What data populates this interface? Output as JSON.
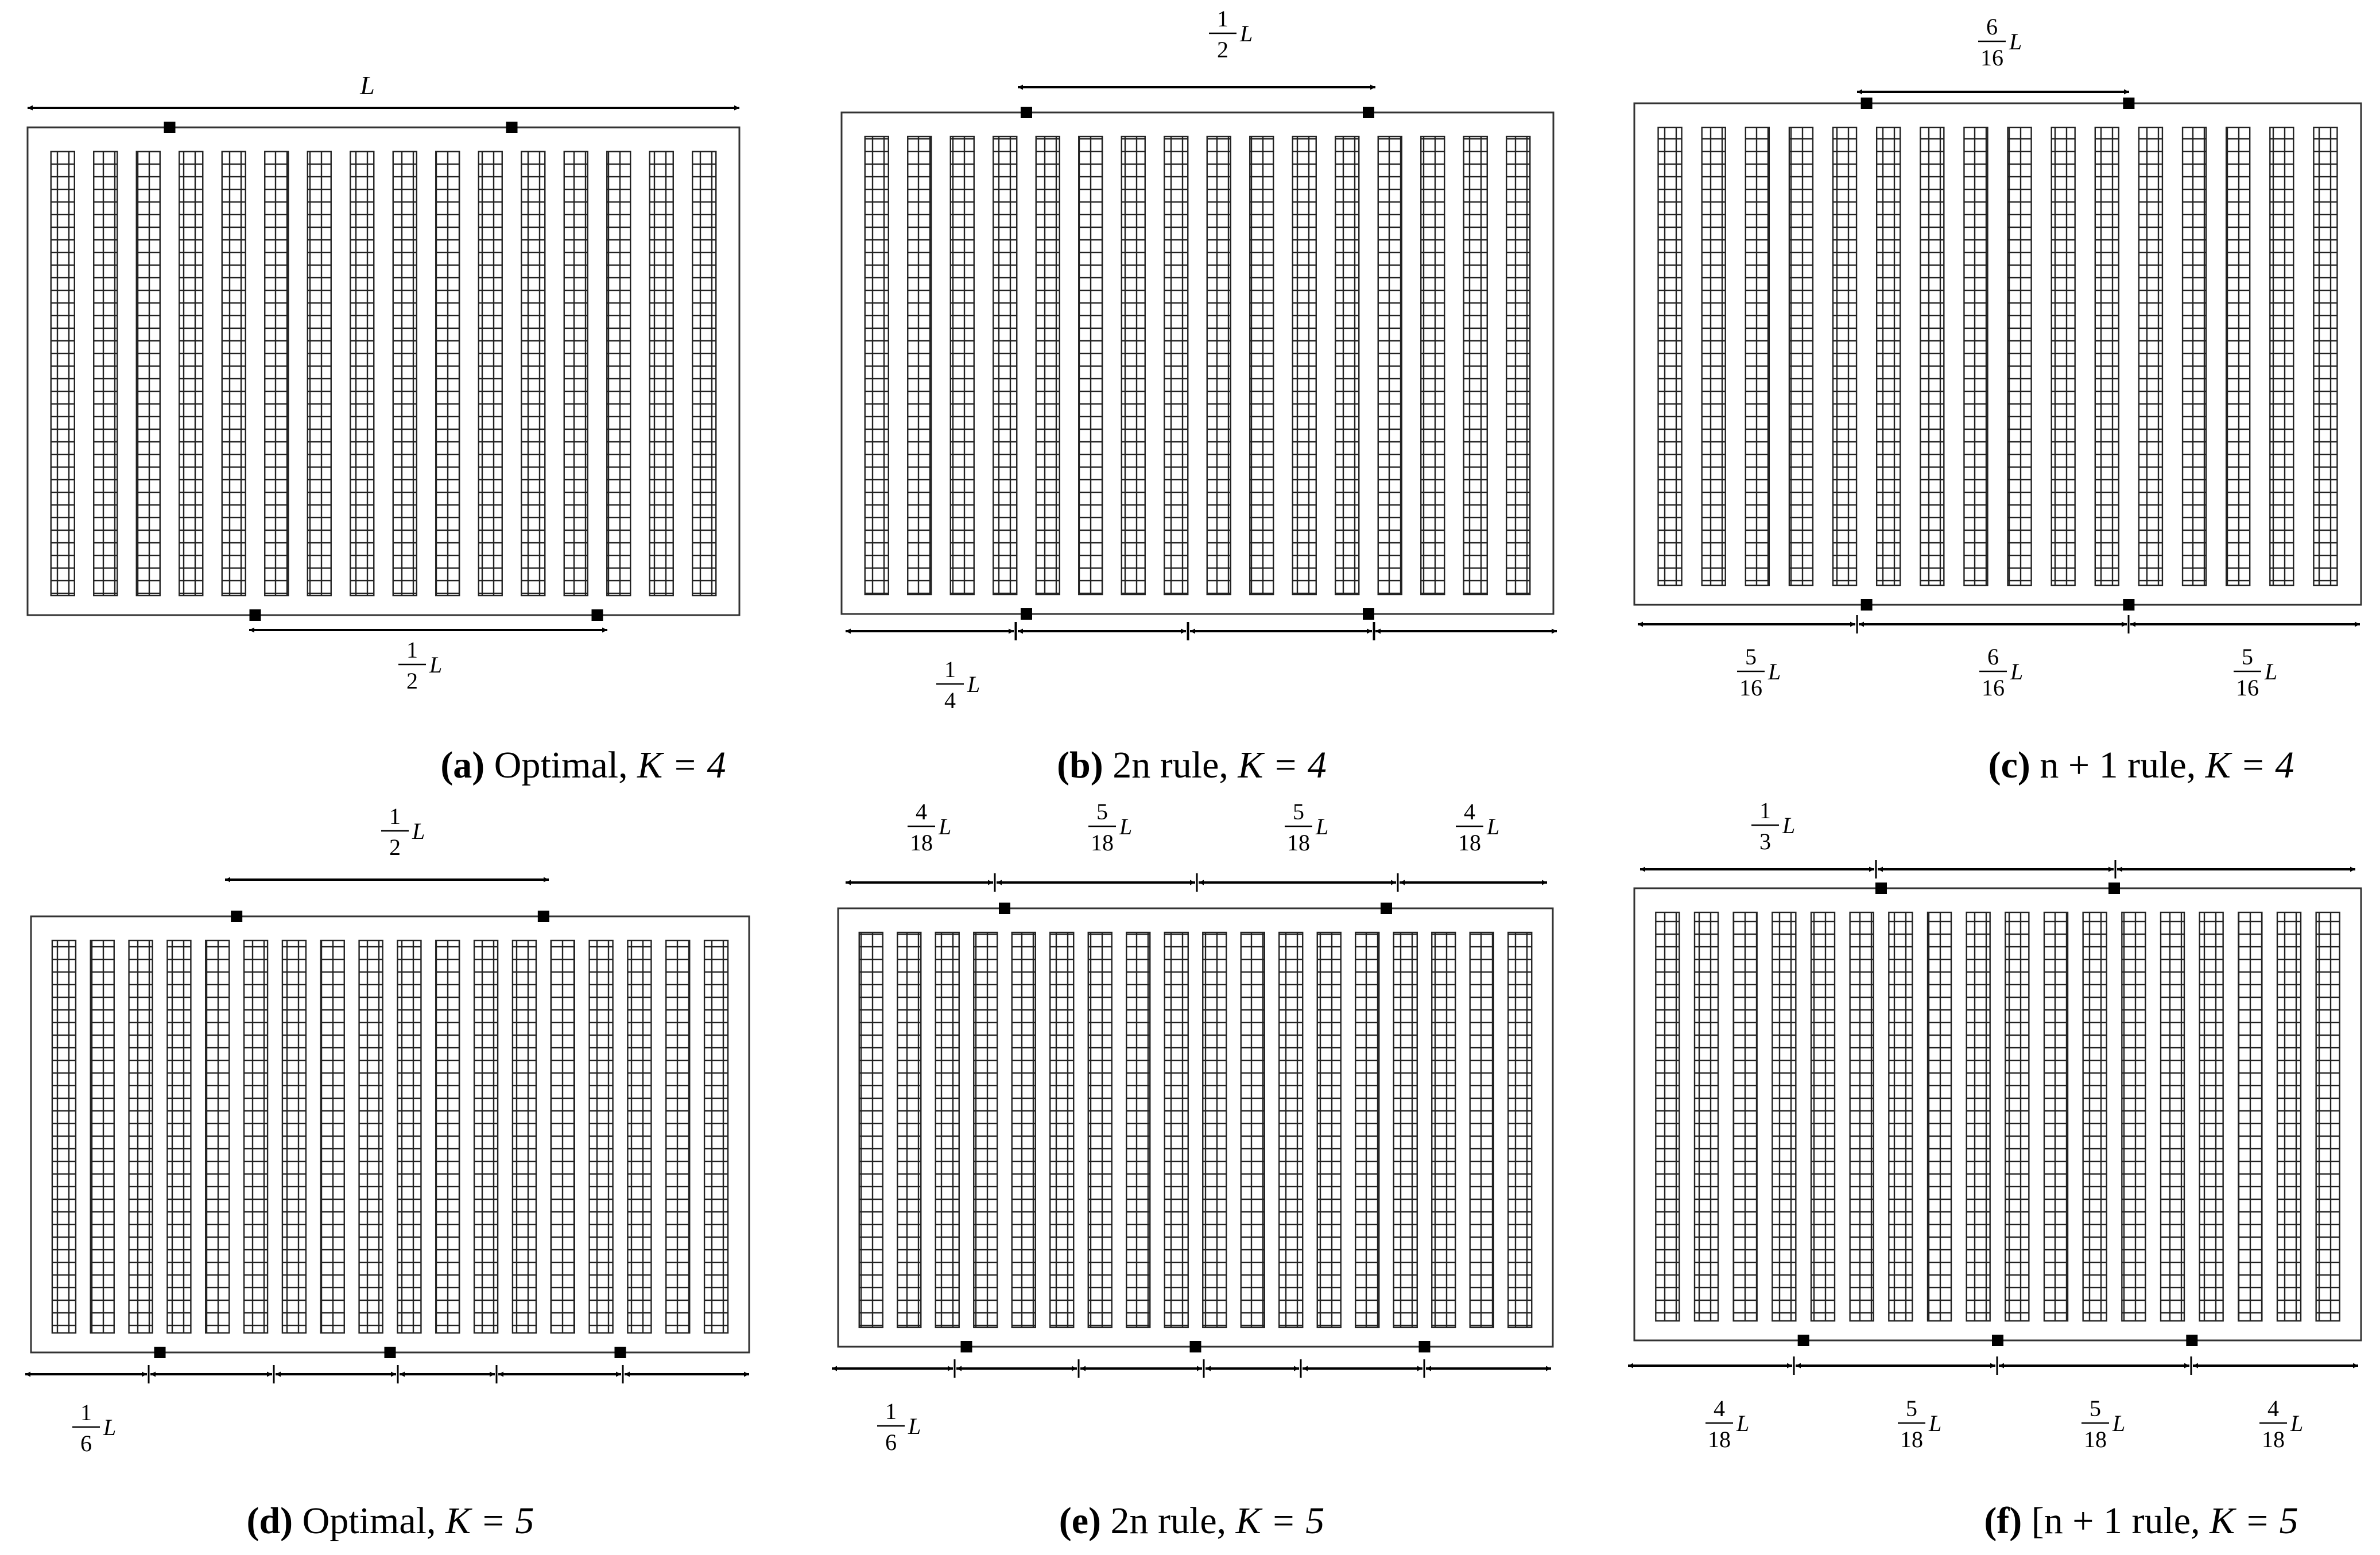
{
  "symbols": {
    "length": "L",
    "count": "K"
  },
  "panels": [
    {
      "id": "a",
      "caption": {
        "letter": "(a)",
        "text": " Optimal, ",
        "k_equation": "K = 4"
      },
      "aisle_count": 16,
      "depots_top_after_aisle": [
        3,
        11
      ],
      "depots_bottom_after_aisle": [
        5,
        13
      ],
      "labels": [
        {
          "num": "",
          "den": "",
          "sym": "L"
        },
        {
          "num": "1",
          "den": "2",
          "sym": "L"
        }
      ]
    },
    {
      "id": "b",
      "caption": {
        "letter": "(b)",
        "text": " 2n rule, ",
        "k_equation": "K = 4"
      },
      "aisle_count": 16,
      "depots_top_after_aisle": [
        4,
        12
      ],
      "depots_bottom_after_aisle": [
        4,
        12
      ],
      "labels": [
        {
          "num": "1",
          "den": "2",
          "sym": "L"
        },
        {
          "num": "1",
          "den": "4",
          "sym": "L"
        }
      ]
    },
    {
      "id": "c",
      "caption": {
        "letter": "(c)",
        "text": " n + 1 rule, ",
        "k_equation": "K = 4"
      },
      "aisle_count": 16,
      "depots_top_after_aisle": [
        5,
        11
      ],
      "depots_bottom_after_aisle": [
        5,
        11
      ],
      "labels": [
        {
          "num": "6",
          "den": "16",
          "sym": "L"
        },
        {
          "num": "5",
          "den": "16",
          "sym": "L"
        },
        {
          "num": "6",
          "den": "16",
          "sym": "L"
        },
        {
          "num": "5",
          "den": "16",
          "sym": "L"
        }
      ]
    },
    {
      "id": "d",
      "caption": {
        "letter": "(d)",
        "text": " Optimal, ",
        "k_equation": "K = 5"
      },
      "aisle_count": 18,
      "depots_top_after_aisle": [
        5,
        13
      ],
      "depots_bottom_after_aisle": [
        3,
        9,
        15
      ],
      "labels": [
        {
          "num": "1",
          "den": "2",
          "sym": "L"
        },
        {
          "num": "1",
          "den": "6",
          "sym": "L"
        }
      ]
    },
    {
      "id": "e",
      "caption": {
        "letter": "(e)",
        "text": " 2n rule, ",
        "k_equation": "K = 5"
      },
      "aisle_count": 18,
      "depots_top_after_aisle": [
        4,
        14
      ],
      "depots_bottom_after_aisle": [
        3,
        9,
        15
      ],
      "labels": [
        {
          "num": "4",
          "den": "18",
          "sym": "L"
        },
        {
          "num": "5",
          "den": "18",
          "sym": "L"
        },
        {
          "num": "5",
          "den": "18",
          "sym": "L"
        },
        {
          "num": "4",
          "den": "18",
          "sym": "L"
        },
        {
          "num": "1",
          "den": "6",
          "sym": "L"
        }
      ]
    },
    {
      "id": "f",
      "caption": {
        "letter": "(f)",
        "text": " [n + 1 rule, ",
        "k_equation": "K = 5"
      },
      "aisle_count": 18,
      "depots_top_after_aisle": [
        6,
        12
      ],
      "depots_bottom_after_aisle": [
        4,
        9,
        14
      ],
      "labels": [
        {
          "num": "1",
          "den": "3",
          "sym": "L"
        },
        {
          "num": "4",
          "den": "18",
          "sym": "L"
        },
        {
          "num": "5",
          "den": "18",
          "sym": "L"
        },
        {
          "num": "5",
          "den": "18",
          "sym": "L"
        },
        {
          "num": "4",
          "den": "18",
          "sym": "L"
        }
      ]
    }
  ]
}
